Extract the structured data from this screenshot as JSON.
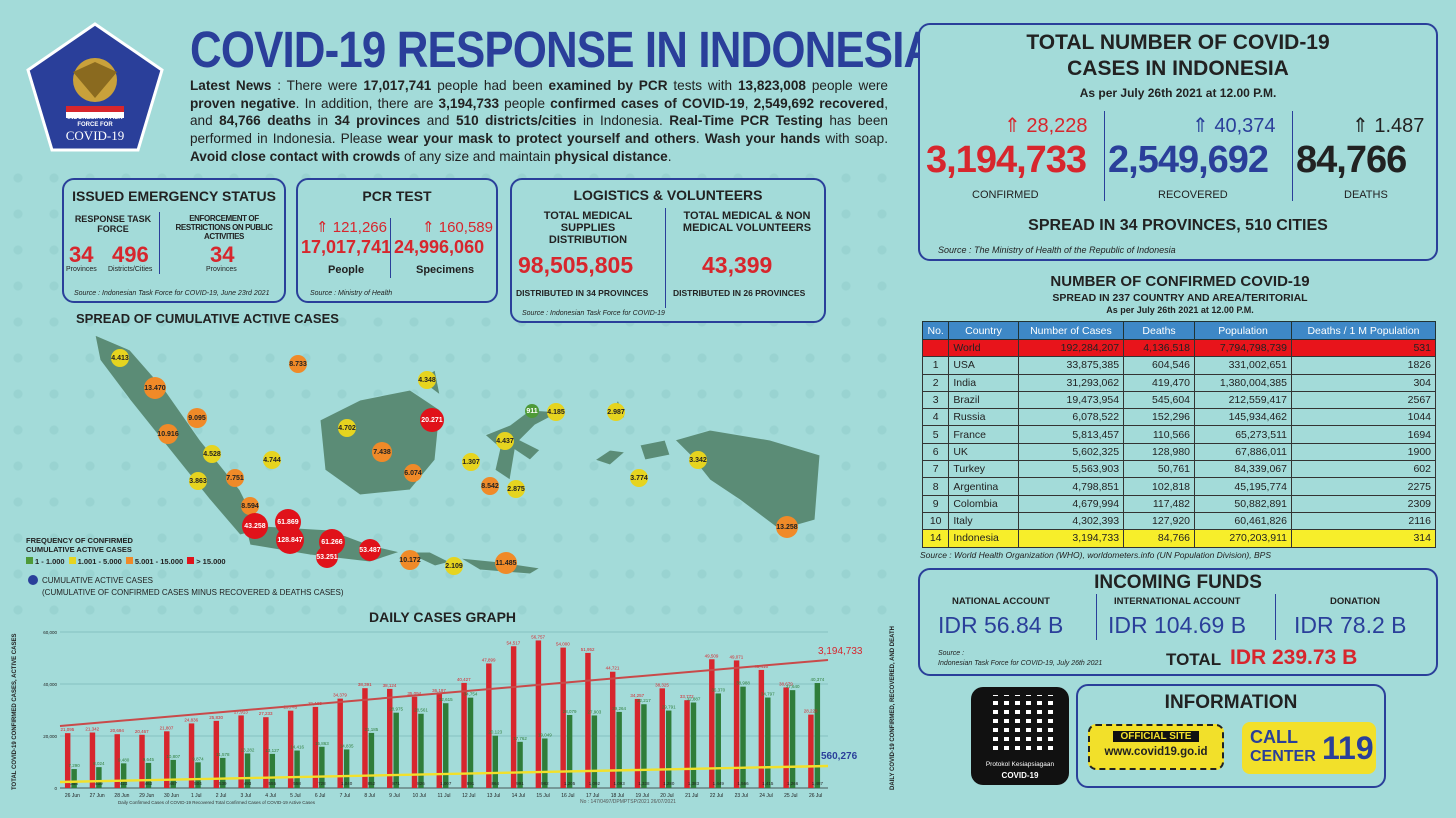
{
  "header": {
    "title": "COVID-19 RESPONSE IN INDONESIA",
    "logo_text1": "INDONESIAN TASK",
    "logo_text2": "FORCE FOR",
    "logo_text3": "COVID-19"
  },
  "news": {
    "p1": "Latest News",
    "p2": " : There were ",
    "examined": "17,017,741",
    "p3": " people had been ",
    "p4": "examined by PCR",
    "p5": " tests with ",
    "negative": "13,823,008",
    "p6": " people were ",
    "p7": "proven negative",
    "p8": ". In addition, there are ",
    "confirmed": "3,194,733",
    "p9": " people ",
    "p10": "confirmed cases of COVID-19",
    "p11": ", ",
    "recovered": "2,549,692",
    "p12": " recovered",
    "p13": ", and ",
    "deaths": "84,766 deaths",
    "p14": " in ",
    "prov": "34 provinces",
    "p15": " and ",
    "cities": "510 districts/cities",
    "p16": " in Indonesia. ",
    "p17": "Real-Time PCR Testing",
    "p18": " has been performed in Indonesia. Please ",
    "p19": "wear your mask to protect yourself and others",
    "p20": ". ",
    "p21": "Wash your hands",
    "p22": " with soap. ",
    "p23": "Avoid close contact with crowds",
    "p24": " of any size and maintain ",
    "p25": "physical distance",
    "p26": "."
  },
  "emergency": {
    "title": "ISSUED EMERGENCY STATUS",
    "col1_title": "RESPONSE TASK FORCE",
    "col2_title": "ENFORCEMENT OF RESTRICTIONS ON PUBLIC ACTIVITIES",
    "prov_val": "34",
    "prov_lbl": "Provinces",
    "dist_val": "496",
    "dist_lbl": "Districts/Cities",
    "enf_val": "34",
    "enf_lbl": "Provinces",
    "source": "Source : Indonesian Task Force for COVID-19, June 23rd 2021"
  },
  "pcr": {
    "title": "PCR TEST",
    "people_inc": "121,266",
    "people_val": "17,017,741",
    "people_lbl": "People",
    "spec_inc": "160,589",
    "spec_val": "24,996,060",
    "spec_lbl": "Specimens",
    "source": "Source : Ministry of Health"
  },
  "logistics": {
    "title": "LOGISTICS & VOLUNTEERS",
    "col1_title": "TOTAL MEDICAL SUPPLIES DISTRIBUTION",
    "col1_val": "98,505,805",
    "col1_sub": "DISTRIBUTED IN 34 PROVINCES",
    "col2_title": "TOTAL MEDICAL & NON MEDICAL VOLUNTEERS",
    "col2_val": "43,399",
    "col2_sub": "DISTRIBUTED IN 26 PROVINCES",
    "source": "Source : Indonesian Task Force for COVID-19"
  },
  "map": {
    "title": "SPREAD OF CUMULATIVE ACTIVE CASES",
    "legend_title1": "FREQUENCY OF CONFIRMED",
    "legend_title2": "CUMULATIVE ACTIVE CASES",
    "legend": [
      "1 - 1.000",
      "1.001 - 5.000",
      "5.001 - 15.000",
      "> 15.000"
    ],
    "legend_colors": [
      "#4e9a38",
      "#e6d41f",
      "#f08a28",
      "#e0121a"
    ],
    "note1": "CUMULATIVE ACTIVE CASES",
    "note2": "(CUMULATIVE OF CONFIRMED CASES MINUS RECOVERED & DEATHS CASES)",
    "bubbles": [
      "4.413",
      "13.470",
      "9.095",
      "10.916",
      "4.528",
      "3.863",
      "4.744",
      "7.751",
      "8.594",
      "43.258",
      "61.869",
      "128.847",
      "61.266",
      "53.251",
      "53.487",
      "10.172",
      "2.109",
      "11.485",
      "8.733",
      "4.702",
      "4.348",
      "20.271",
      "7.438",
      "6.074",
      "911",
      "4.185",
      "4.437",
      "1.307",
      "8.542",
      "2.875",
      "2.987",
      "3.774",
      "3.342",
      "13.258"
    ]
  },
  "daily": {
    "title": "DAILY CASES GRAPH",
    "ylabel_left": "TOTAL COVID-19 CONFIRMED CASES, ACTIVE CASES",
    "ylabel_right": "DAILY COVID-19 CONFIRMED, RECOVERED, AND DEATH",
    "total_label": "3,194,733",
    "active_label": "560,276",
    "legend": "Daily Confirmed Cases of COVID-19   Recovered   Total Confirmed Cases of COVID-19   Active Cases",
    "footnote": "No : 147/0497/DPMPTSP/2021 26/07/2021"
  },
  "chart_data": {
    "type": "bar",
    "categories": [
      "26 Jun",
      "27 Jun",
      "28 Jun",
      "29 Jun",
      "30 Jun",
      "1 Jul",
      "2 Jul",
      "3 Jul",
      "4 Jul",
      "5 Jul",
      "6 Jul",
      "7 Jul",
      "8 Jul",
      "9 Jul",
      "10 Jul",
      "11 Jul",
      "12 Jul",
      "13 Jul",
      "14 Jul",
      "15 Jul",
      "16 Jul",
      "17 Jul",
      "18 Jul",
      "19 Jul",
      "20 Jul",
      "21 Jul",
      "22 Jul",
      "23 Jul",
      "24 Jul",
      "25 Jul",
      "26 Jul"
    ],
    "series": [
      {
        "name": "Daily Confirmed Cases of COVID-19",
        "values": [
          21095,
          21342,
          20694,
          20467,
          21807,
          24836,
          25830,
          27913,
          27233,
          29745,
          31189,
          34379,
          38391,
          38124,
          35094,
          36197,
          40427,
          47899,
          54517,
          56757,
          54000,
          51952,
          44721,
          34257,
          38325,
          33772,
          49509,
          49071,
          45416,
          38679,
          28228
        ]
      },
      {
        "name": "Recovered",
        "values": [
          7290,
          8024,
          9480,
          9645,
          10807,
          9874,
          11578,
          13282,
          13127,
          14416,
          15863,
          14835,
          21185,
          28975,
          28561,
          32615,
          34754,
          20123,
          17762,
          19049,
          28079,
          27903,
          29264,
          32217,
          29791,
          32887,
          36370,
          38988,
          34797,
          37640,
          40374
        ]
      },
      {
        "name": "Deaths",
        "values": [
          358,
          409,
          423,
          463,
          467,
          504,
          539,
          493,
          555,
          558,
          728,
          1040,
          852,
          871,
          826,
          1007,
          891,
          864,
          991,
          982,
          1205,
          1092,
          1093,
          1338,
          1280,
          1383,
          1449,
          1566,
          1415,
          1266,
          1487
        ]
      }
    ],
    "xlabel": "",
    "ylim": [
      0,
      60000
    ]
  },
  "totals": {
    "title1": "TOTAL NUMBER OF COVID-19",
    "title2": "CASES IN INDONESIA",
    "asof": "As per July 26th 2021 at 12.00 P.M.",
    "conf_inc": "28,228",
    "conf_val": "3,194,733",
    "conf_lbl": "CONFIRMED",
    "rec_inc": "40,374",
    "rec_val": "2,549,692",
    "rec_lbl": "RECOVERED",
    "death_inc": "1.487",
    "death_val": "84,766",
    "death_lbl": "DEATHS",
    "spread": "SPREAD IN 34 PROVINCES, 510 CITIES",
    "source": "Source : The Ministry of Health of the Republic of Indonesia"
  },
  "world": {
    "title1": "NUMBER OF CONFIRMED COVID-19",
    "title2": "SPREAD IN 237 COUNTRY AND AREA/TERITORIAL",
    "asof": "As per July 26th 2021 at 12.00 P.M.",
    "headers": [
      "No.",
      "Country",
      "Number of Cases",
      "Deaths",
      "Population",
      "Deaths / 1 M Population"
    ],
    "rows": [
      [
        "",
        "World",
        "192,284,207",
        "4,136,518",
        "7,794,798,739",
        "531"
      ],
      [
        "1",
        "USA",
        "33,875,385",
        "604,546",
        "331,002,651",
        "1826"
      ],
      [
        "2",
        "India",
        "31,293,062",
        "419,470",
        "1,380,004,385",
        "304"
      ],
      [
        "3",
        "Brazil",
        "19,473,954",
        "545,604",
        "212,559,417",
        "2567"
      ],
      [
        "4",
        "Russia",
        "6,078,522",
        "152,296",
        "145,934,462",
        "1044"
      ],
      [
        "5",
        "France",
        "5,813,457",
        "110,566",
        "65,273,511",
        "1694"
      ],
      [
        "6",
        "UK",
        "5,602,325",
        "128,980",
        "67,886,011",
        "1900"
      ],
      [
        "7",
        "Turkey",
        "5,563,903",
        "50,761",
        "84,339,067",
        "602"
      ],
      [
        "8",
        "Argentina",
        "4,798,851",
        "102,818",
        "45,195,774",
        "2275"
      ],
      [
        "9",
        "Colombia",
        "4,679,994",
        "117,482",
        "50,882,891",
        "2309"
      ],
      [
        "10",
        "Italy",
        "4,302,393",
        "127,920",
        "60,461,826",
        "2116"
      ],
      [
        "14",
        "Indonesia",
        "3,194,733",
        "84,766",
        "270,203,911",
        "314"
      ]
    ],
    "source": "Source : World Health Organization (WHO), worldometers.info (UN Population Division), BPS"
  },
  "funds": {
    "title": "INCOMING FUNDS",
    "national_lbl": "NATIONAL ACCOUNT",
    "national_val": "IDR 56.84 B",
    "intl_lbl": "INTERNATIONAL ACCOUNT",
    "intl_val": "IDR 104.69 B",
    "donation_lbl": "DONATION",
    "donation_val": "IDR 78.2 B",
    "source1": "Source :",
    "source2": "Indonesian Task Force for COVID-19, July 26th 2021",
    "total_lbl": "TOTAL",
    "total_val": "IDR 239.73 B"
  },
  "info": {
    "qr_caption1": "Protokol Kesiapsiagaan",
    "qr_caption2": "COVID-19",
    "title": "INFORMATION",
    "site_lbl": "OFFICIAL SITE",
    "site_url": "www.covid19.go.id",
    "call_lbl1": "CALL",
    "call_lbl2": "CENTER",
    "call_num": "119"
  }
}
